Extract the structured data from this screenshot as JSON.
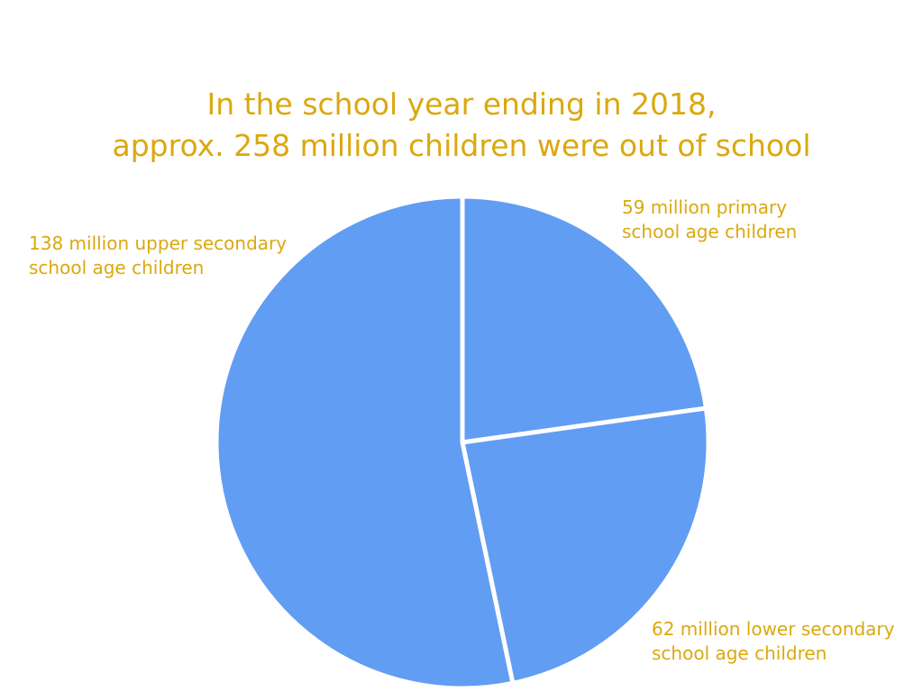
{
  "colors": {
    "text": "#dba80f",
    "slice_fill": "#619df2",
    "slice_stroke": "#ffffff"
  },
  "chart_data": {
    "type": "pie",
    "title_lines": [
      "In the school year ending in 2018,",
      "approx. 258 million children were out of school"
    ],
    "slices": [
      {
        "value": 59,
        "label_lines": [
          "59 million primary",
          "school age children"
        ]
      },
      {
        "value": 62,
        "label_lines": [
          "62 million lower secondary",
          "school age children"
        ]
      },
      {
        "value": 138,
        "label_lines": [
          "138 million upper secondary",
          "school age children"
        ]
      }
    ]
  }
}
